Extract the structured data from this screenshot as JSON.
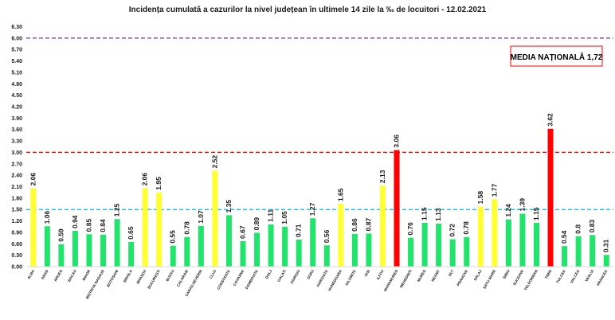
{
  "chart_data": {
    "type": "bar",
    "title": "Incidența cumulată a cazurilor la nivel județean în ultimele 14 zile la ‰ de locuitori - 12.02.2021",
    "annotation": "MEDIA NAȚIONALĂ 1,72",
    "ylim": [
      0,
      6.3
    ],
    "yticks": [
      "0.00",
      "0.30",
      "0.60",
      "0.90",
      "1.20",
      "1.50",
      "1.80",
      "2.10",
      "2.40",
      "2.70",
      "3.00",
      "3.30",
      "3.60",
      "3.90",
      "4.20",
      "4.50",
      "4.80",
      "5.10",
      "5.40",
      "5.70",
      "6.00",
      "6.30"
    ],
    "reference_lines": [
      {
        "value": 6.0,
        "color": "#7030a0",
        "style": "dashed"
      },
      {
        "value": 3.0,
        "color": "#ff0000",
        "style": "dashed"
      },
      {
        "value": 1.5,
        "color": "#00b0f0",
        "style": "dashed"
      }
    ],
    "grid": false,
    "categories": [
      "ALBA",
      "ARAD",
      "ARGES",
      "BACAU",
      "BIHOR",
      "BISTRITA NASAUD",
      "BOTOSANI",
      "BRAILA",
      "BRASOV",
      "BUCURESTI",
      "BUZAU",
      "CALARASI",
      "CARAS-SEVERIN",
      "CLUJ",
      "CONSTANTA",
      "COVASNA",
      "DAMBOVITA",
      "DOLJ",
      "GALATI",
      "GIURGIU",
      "GORJ",
      "HARGHITA",
      "HUNEDOARA",
      "IALOMITA",
      "IASI",
      "ILFOV",
      "MARAMURES",
      "MEHEDINTI",
      "MURES",
      "NEAMT",
      "OLT",
      "PRAHOVA",
      "SALAJ",
      "SATU MARE",
      "SIBIU",
      "SUCEAVA",
      "TELEORMAN",
      "TIMIS",
      "TULCEA",
      "VALCEA",
      "VASLUI",
      "VRANCEA"
    ],
    "values": [
      2.06,
      1.06,
      0.59,
      0.94,
      0.85,
      0.84,
      1.25,
      0.65,
      2.06,
      1.95,
      0.55,
      0.78,
      1.07,
      2.52,
      1.35,
      0.67,
      0.89,
      1.11,
      1.05,
      0.71,
      1.27,
      0.56,
      1.65,
      0.86,
      0.87,
      2.13,
      3.06,
      0.76,
      1.15,
      1.13,
      0.72,
      0.78,
      1.58,
      1.77,
      1.24,
      1.39,
      1.15,
      3.62,
      0.54,
      0.8,
      0.83,
      0.31
    ],
    "value_labels": [
      "2.06",
      "1.06",
      "0.59",
      "0.94",
      "0.85",
      "0.84",
      "1.25",
      "0.65",
      "2.06",
      "1.95",
      "0.55",
      "0.78",
      "1.07",
      "2.52",
      "1.35",
      "0.67",
      "0.89",
      "1.11",
      "1.05",
      "0.71",
      "1.27",
      "0.56",
      "1.65",
      "0.86",
      "0.87",
      "2.13",
      "3.06",
      "0.76",
      "1.15",
      "1.13",
      "0.72",
      "0.78",
      "1.58",
      "1.77",
      "1.24",
      "1.39",
      "1.15",
      "3.62",
      "0.54",
      "0.8",
      "0.83",
      "0.31"
    ],
    "colors": {
      "green": "#22e36b",
      "yellow": "#ffff33",
      "red": "#ff0000",
      "annotation_border": "#ff0000"
    }
  }
}
